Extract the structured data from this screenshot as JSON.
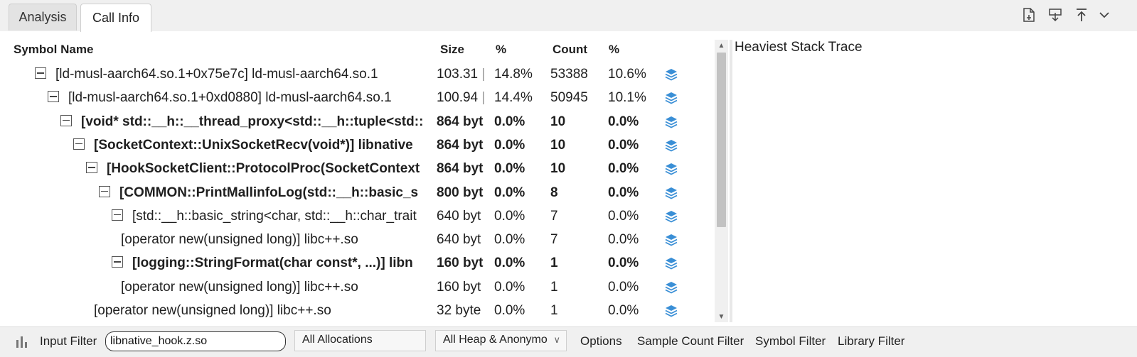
{
  "tabs": [
    {
      "label": "Analysis",
      "active": false
    },
    {
      "label": "Call Info",
      "active": true
    }
  ],
  "toolbar": {
    "icons": [
      "export-file-icon",
      "download-icon",
      "upload-icon",
      "chevron-down-icon"
    ]
  },
  "table": {
    "headers": {
      "symbol": "Symbol Name",
      "size": "Size",
      "size_pct": "%",
      "count": "Count",
      "count_pct": "%"
    },
    "rows": [
      {
        "symbol": "[ld-musl-aarch64.so.1+0x75e7c] ld-musl-aarch64.so.1",
        "size": "103.31",
        "size_pct": "14.8%",
        "count": "53388",
        "count_pct": "10.6%",
        "expanded": true,
        "bold": false
      },
      {
        "symbol": "[ld-musl-aarch64.so.1+0xd0880] ld-musl-aarch64.so.1",
        "size": "100.94",
        "size_pct": "14.4%",
        "count": "50945",
        "count_pct": "10.1%",
        "expanded": true,
        "bold": false
      },
      {
        "symbol": "[void* std::__h::__thread_proxy<std::__h::tuple<std::",
        "size": "864 byt",
        "size_pct": "0.0%",
        "count": "10",
        "count_pct": "0.0%",
        "expanded": true,
        "bold": true
      },
      {
        "symbol": "[SocketContext::UnixSocketRecv(void*)] libnative",
        "size": "864 byt",
        "size_pct": "0.0%",
        "count": "10",
        "count_pct": "0.0%",
        "expanded": true,
        "bold": true
      },
      {
        "symbol": "[HookSocketClient::ProtocolProc(SocketContext",
        "size": "864 byt",
        "size_pct": "0.0%",
        "count": "10",
        "count_pct": "0.0%",
        "expanded": true,
        "bold": true
      },
      {
        "symbol": "[COMMON::PrintMallinfoLog(std::__h::basic_s",
        "size": "800 byt",
        "size_pct": "0.0%",
        "count": "8",
        "count_pct": "0.0%",
        "expanded": true,
        "bold": true
      },
      {
        "symbol": "[std::__h::basic_string<char, std::__h::char_trait",
        "size": "640 byt",
        "size_pct": "0.0%",
        "count": "7",
        "count_pct": "0.0%",
        "expanded": true,
        "bold": false
      },
      {
        "symbol": "[operator new(unsigned long)] libc++.so",
        "size": "640 byt",
        "size_pct": "0.0%",
        "count": "7",
        "count_pct": "0.0%",
        "expanded": false,
        "bold": false
      },
      {
        "symbol": "[logging::StringFormat(char const*, ...)] libn",
        "size": "160 byt",
        "size_pct": "0.0%",
        "count": "1",
        "count_pct": "0.0%",
        "expanded": true,
        "bold": true
      },
      {
        "symbol": "[operator new(unsigned long)] libc++.so",
        "size": "160 byt",
        "size_pct": "0.0%",
        "count": "1",
        "count_pct": "0.0%",
        "expanded": false,
        "bold": false
      },
      {
        "symbol": "[operator new(unsigned long)] libc++.so",
        "size": "32 byte",
        "size_pct": "0.0%",
        "count": "1",
        "count_pct": "0.0%",
        "expanded": false,
        "bold": false
      }
    ]
  },
  "heaviest": {
    "title": "Heaviest Stack Trace"
  },
  "bottom": {
    "input_filter_label": "Input Filter",
    "input_filter_value": "libnative_hook.z.so",
    "allocations_select": "All Allocations",
    "heap_select": "All Heap & Anonymo",
    "options": "Options",
    "sample_count_filter": "Sample Count Filter",
    "symbol_filter": "Symbol Filter",
    "library_filter": "Library Filter"
  },
  "colors": {
    "accent": "#3a8fd6",
    "tabbar_bg": "#f0f0f0"
  }
}
